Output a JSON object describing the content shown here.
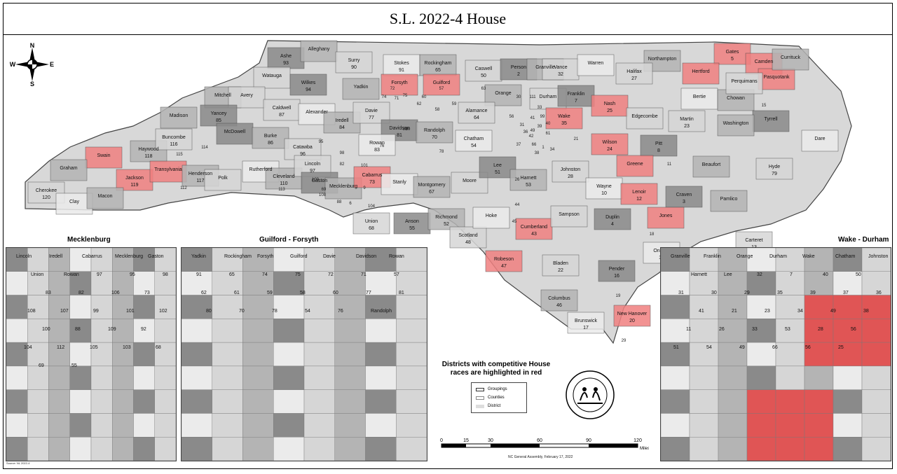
{
  "title": "S.L. 2022-4 House",
  "compass": {
    "n": "N",
    "s": "S",
    "e": "E",
    "w": "W"
  },
  "colors": {
    "competitive": "#f08080",
    "competitive_dark": "#e05555",
    "group_dark": "#8a8a8a",
    "group_mid": "#b4b4b4",
    "group_light": "#d6d6d6",
    "group_pale": "#ebebeb",
    "outline": "#444444"
  },
  "counties": [
    {
      "name": "Ashe",
      "num": "93"
    },
    {
      "name": "Alleghany",
      "num": ""
    },
    {
      "name": "Surry",
      "num": "90"
    },
    {
      "name": "Stokes",
      "num": "91"
    },
    {
      "name": "Rockingham",
      "num": "65"
    },
    {
      "name": "Caswell",
      "num": "50"
    },
    {
      "name": "Person",
      "num": "2"
    },
    {
      "name": "Granville",
      "num": ""
    },
    {
      "name": "Vance",
      "num": "32"
    },
    {
      "name": "Warren",
      "num": ""
    },
    {
      "name": "Northampton",
      "num": ""
    },
    {
      "name": "Halifax",
      "num": "27"
    },
    {
      "name": "Gates",
      "num": "5"
    },
    {
      "name": "Hertford",
      "num": ""
    },
    {
      "name": "Camden",
      "num": ""
    },
    {
      "name": "Pasquotank",
      "num": ""
    },
    {
      "name": "Currituck",
      "num": ""
    },
    {
      "name": "Watauga",
      "num": ""
    },
    {
      "name": "Wilkes",
      "num": "94"
    },
    {
      "name": "Yadkin",
      "num": ""
    },
    {
      "name": "Forsyth",
      "num": ""
    },
    {
      "name": "Guilford",
      "num": ""
    },
    {
      "name": "Orange",
      "num": ""
    },
    {
      "name": "Durham",
      "num": ""
    },
    {
      "name": "Franklin",
      "num": "7"
    },
    {
      "name": "Nash",
      "num": "25"
    },
    {
      "name": "Edgecombe",
      "num": ""
    },
    {
      "name": "Bertie",
      "num": ""
    },
    {
      "name": "Chowan",
      "num": ""
    },
    {
      "name": "Perquimans",
      "num": ""
    },
    {
      "name": "Tyrrell",
      "num": ""
    },
    {
      "name": "Washington",
      "num": ""
    },
    {
      "name": "Martin",
      "num": "23"
    },
    {
      "name": "Dare",
      "num": ""
    },
    {
      "name": "Mitchell",
      "num": ""
    },
    {
      "name": "Avery",
      "num": ""
    },
    {
      "name": "Yancey",
      "num": "85"
    },
    {
      "name": "Madison",
      "num": ""
    },
    {
      "name": "Caldwell",
      "num": "87"
    },
    {
      "name": "Alexander",
      "num": ""
    },
    {
      "name": "Iredell",
      "num": "84"
    },
    {
      "name": "Davie",
      "num": "77"
    },
    {
      "name": "Davidson",
      "num": "81"
    },
    {
      "name": "Randolph",
      "num": "70"
    },
    {
      "name": "Alamance",
      "num": "64"
    },
    {
      "name": "Chatham",
      "num": "54"
    },
    {
      "name": "Wake",
      "num": "35"
    },
    {
      "name": "Wilson",
      "num": "24"
    },
    {
      "name": "Pitt",
      "num": "8"
    },
    {
      "name": "Beaufort",
      "num": ""
    },
    {
      "name": "Hyde",
      "num": "79"
    },
    {
      "name": "Swain",
      "num": ""
    },
    {
      "name": "Haywood",
      "num": "118"
    },
    {
      "name": "Buncombe",
      "num": "116"
    },
    {
      "name": "McDowell",
      "num": ""
    },
    {
      "name": "Burke",
      "num": "86"
    },
    {
      "name": "Catawba",
      "num": "96"
    },
    {
      "name": "Rowan",
      "num": "83"
    },
    {
      "name": "Graham",
      "num": ""
    },
    {
      "name": "Jackson",
      "num": "119"
    },
    {
      "name": "Transylvania",
      "num": ""
    },
    {
      "name": "Henderson",
      "num": "117"
    },
    {
      "name": "Polk",
      "num": ""
    },
    {
      "name": "Rutherford",
      "num": ""
    },
    {
      "name": "Cleveland",
      "num": "110"
    },
    {
      "name": "Lincoln",
      "num": "97"
    },
    {
      "name": "Gaston",
      "num": ""
    },
    {
      "name": "Mecklenburg",
      "num": ""
    },
    {
      "name": "Cabarrus",
      "num": "73"
    },
    {
      "name": "Stanly",
      "num": ""
    },
    {
      "name": "Montgomery",
      "num": "67"
    },
    {
      "name": "Moore",
      "num": ""
    },
    {
      "name": "Lee",
      "num": "51"
    },
    {
      "name": "Harnett",
      "num": "53"
    },
    {
      "name": "Johnston",
      "num": "28"
    },
    {
      "name": "Wayne",
      "num": "10"
    },
    {
      "name": "Greene",
      "num": ""
    },
    {
      "name": "Lenoir",
      "num": "12"
    },
    {
      "name": "Craven",
      "num": "3"
    },
    {
      "name": "Pamlico",
      "num": ""
    },
    {
      "name": "Cherokee",
      "num": "120"
    },
    {
      "name": "Clay",
      "num": ""
    },
    {
      "name": "Macon",
      "num": ""
    },
    {
      "name": "Union",
      "num": "68"
    },
    {
      "name": "Anson",
      "num": "55"
    },
    {
      "name": "Richmond",
      "num": "52"
    },
    {
      "name": "Scotland",
      "num": "48"
    },
    {
      "name": "Hoke",
      "num": ""
    },
    {
      "name": "Cumberland",
      "num": "43"
    },
    {
      "name": "Sampson",
      "num": ""
    },
    {
      "name": "Duplin",
      "num": "4"
    },
    {
      "name": "Jones",
      "num": ""
    },
    {
      "name": "Carteret",
      "num": "13"
    },
    {
      "name": "Onslow",
      "num": "14"
    },
    {
      "name": "Robeson",
      "num": "47"
    },
    {
      "name": "Bladen",
      "num": "22"
    },
    {
      "name": "Pender",
      "num": "16"
    },
    {
      "name": "Columbus",
      "num": "46"
    },
    {
      "name": "New Hanover",
      "num": "20"
    },
    {
      "name": "Brunswick",
      "num": "17"
    }
  ],
  "extra_numbers": [
    "60",
    "62",
    "57",
    "59",
    "58",
    "63",
    "71",
    "72",
    "74",
    "75",
    "80",
    "76",
    "78",
    "89",
    "95",
    "98",
    "82",
    "101",
    "109",
    "108",
    "88",
    "69",
    "104",
    "6",
    "26",
    "21",
    "31",
    "33",
    "34",
    "36",
    "37",
    "38",
    "39",
    "40",
    "41",
    "42",
    "44",
    "45",
    "49",
    "56",
    "61",
    "66",
    "99",
    "9",
    "11",
    "1",
    "15",
    "18",
    "19",
    "29",
    "30",
    "111",
    "112",
    "113",
    "114",
    "115"
  ],
  "insets": {
    "mecklenburg": {
      "title": "Mecklenburg",
      "labels": [
        "Lincoln",
        "Iredell",
        "Cabarrus",
        "Mecklenburg",
        "Gaston",
        "Union",
        "Rowan",
        "97",
        "95",
        "98",
        "83",
        "82",
        "106",
        "73",
        "108",
        "107",
        "99",
        "101",
        "102",
        "100",
        "88",
        "109",
        "92",
        "104",
        "112",
        "105",
        "103",
        "68",
        "69",
        "55"
      ]
    },
    "guilford_forsyth": {
      "title": "Guilford - Forsyth",
      "labels": [
        "Yadkin",
        "Rockingham",
        "Forsyth",
        "Guilford",
        "Davie",
        "Davidson",
        "Rowan",
        "91",
        "65",
        "74",
        "75",
        "72",
        "71",
        "57",
        "62",
        "61",
        "59",
        "58",
        "60",
        "77",
        "81",
        "80",
        "70",
        "78",
        "54",
        "76",
        "Randolph"
      ]
    },
    "wake_durham": {
      "title": "Wake - Durham",
      "labels": [
        "Granville",
        "Franklin",
        "Orange",
        "Durham",
        "Wake",
        "Chatham",
        "Johnston",
        "Harnett",
        "Lee",
        "32",
        "7",
        "40",
        "50",
        "31",
        "30",
        "29",
        "35",
        "39",
        "37",
        "36",
        "41",
        "21",
        "23",
        "34",
        "49",
        "38",
        "11",
        "26",
        "33",
        "53",
        "28",
        "56",
        "51",
        "54",
        "49",
        "66",
        "56",
        "25"
      ]
    }
  },
  "legend": {
    "title": "Districts with competitive House races are highlighted in red",
    "items": [
      "Groupings",
      "Counties",
      "District"
    ]
  },
  "scale": {
    "ticks": [
      "0",
      "15",
      "30",
      "60",
      "90",
      "120"
    ],
    "unit": "Miles"
  },
  "credit": "NC General Assembly, February 17, 2022",
  "source": "Source: NL 2022-4"
}
